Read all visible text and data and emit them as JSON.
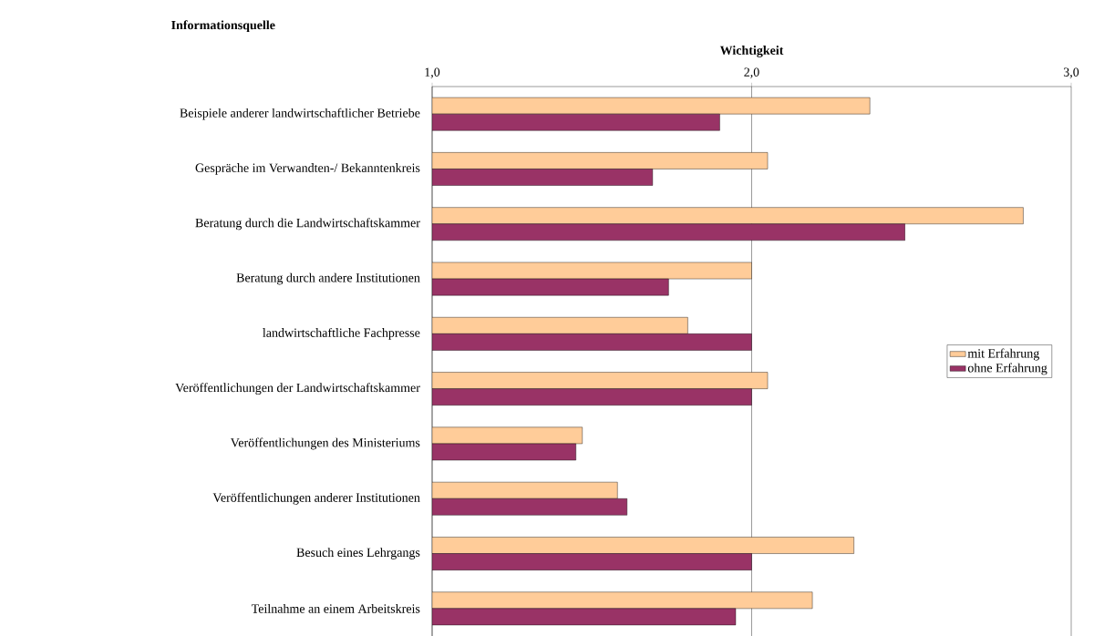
{
  "chart_data": {
    "type": "bar",
    "orientation": "horizontal",
    "xlabel": "Wichtigkeit",
    "ylabel": "Informationsquelle",
    "categories": [
      "Beispiele anderer landwirtschaftlicher Betriebe",
      "Gespräche im Verwandten-/ Bekanntenkreis",
      "Beratung durch die Landwirtschaftskammer",
      "Beratung durch andere Institutionen",
      "landwirtschaftliche Fachpresse",
      "Veröffentlichungen der Landwirtschaftskammer",
      "Veröffentlichungen des Ministeriums",
      "Veröffentlichungen anderer Institutionen",
      "Besuch eines Lehrgangs",
      "Teilnahme an einem Arbeitskreis"
    ],
    "series": [
      {
        "name": "mit Erfahrung",
        "color": "#ffcc99",
        "values": [
          2.37,
          2.05,
          2.85,
          2.0,
          1.8,
          2.05,
          1.47,
          1.58,
          2.32,
          2.19
        ]
      },
      {
        "name": "ohne Erfahrung",
        "color": "#993366",
        "values": [
          1.9,
          1.69,
          2.48,
          1.74,
          2.0,
          2.0,
          1.45,
          1.61,
          2.0,
          1.95
        ]
      }
    ],
    "xlim": [
      1,
      3
    ],
    "xticks": [
      {
        "value": 1,
        "label": "1,0"
      },
      {
        "value": 2,
        "label": "2,0"
      },
      {
        "value": 3,
        "label": "3,0"
      }
    ],
    "grid": "x",
    "legend": "right"
  }
}
